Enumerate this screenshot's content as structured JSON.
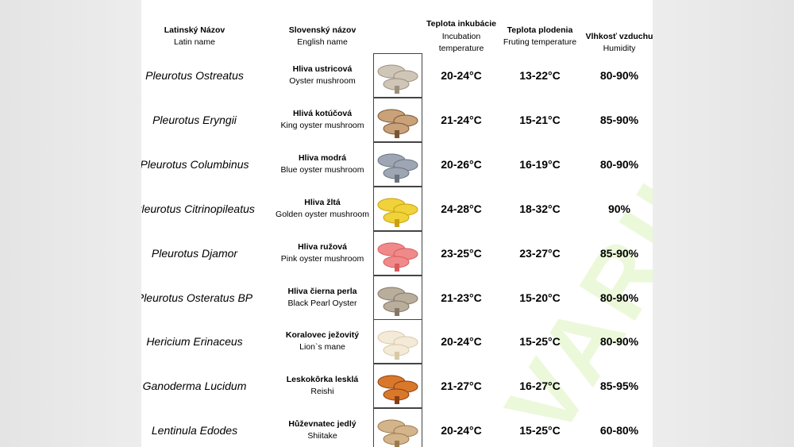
{
  "header": {
    "latin": {
      "sk": "Latinský Názov",
      "en": "Latin name"
    },
    "slovak": {
      "sk": "Slovenský názov",
      "en": "English name"
    },
    "incubation": {
      "sk": "Teplota inkubácie",
      "en1": "Incubation",
      "en2": "temperature"
    },
    "fruiting": {
      "sk": "Teplota plodenia",
      "en": "Fruting temperature"
    },
    "humidity": {
      "sk": "Vlhkosť vzduchu",
      "en": "Humidity"
    }
  },
  "watermark": "VARIUM",
  "rows": [
    [
      "Pleurotus Ostreatus",
      "Hliva ustricová",
      "Oyster mushroom",
      "20-24°C",
      "13-22°C",
      "80-90%"
    ],
    [
      "Pleurotus Eryngii",
      "Hlivá kotúčová",
      "King oyster mushroom",
      "21-24°C",
      "15-21°C",
      "85-90%"
    ],
    [
      "Pleurotus Columbinus",
      "Hliva modrá",
      "Blue oyster mushroom",
      "20-26°C",
      "16-19°C",
      "80-90%"
    ],
    [
      "Pleurotus Citrinopileatus",
      "Hliva žltá",
      "Golden oyster mushroom",
      "24-28°C",
      "18-32°C",
      "90%"
    ],
    [
      "Pleurotus Djamor",
      "Hliva ružová",
      "Pink oyster mushroom",
      "23-25°C",
      "23-27°C",
      "85-90%"
    ],
    [
      "Pleurotus Osteratus BP",
      "Hliva čierna perla",
      "Black Pearl Oyster",
      "21-23°C",
      "15-20°C",
      "80-90%"
    ],
    [
      "Hericium Erinaceus",
      "Koralovec ježovitý",
      "Lion`s mane",
      "20-24°C",
      "15-25°C",
      "80-90%"
    ],
    [
      "Ganoderma Lucidum",
      "Leskokôrka lesklá",
      "Reishi",
      "21-27°C",
      "16-27°C",
      "85-95%"
    ],
    [
      "Lentinula Edodes",
      "Hůževnatec jedlý",
      "Shiitake",
      "20-24°C",
      "15-25°C",
      "60-80%"
    ]
  ]
}
